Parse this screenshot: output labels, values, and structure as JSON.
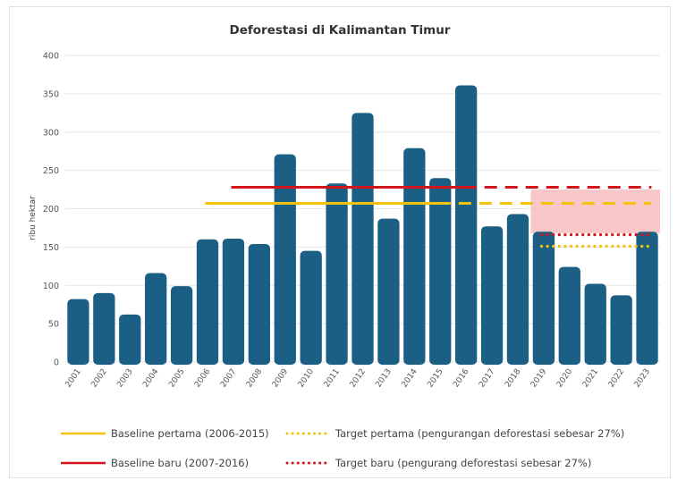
{
  "chart_data": {
    "type": "bar",
    "title": "Deforestasi di Kalimantan Timur",
    "ylabel": "ribu hektar",
    "xlabel": "",
    "ylim": [
      0,
      400
    ],
    "yticks": [
      0,
      50,
      100,
      150,
      200,
      250,
      300,
      350,
      400
    ],
    "grid": true,
    "legend_position": "bottom",
    "bar_color": "#1b5f85",
    "categories": [
      "2001",
      "2002",
      "2003",
      "2004",
      "2005",
      "2006",
      "2007",
      "2008",
      "2009",
      "2010",
      "2011",
      "2012",
      "2013",
      "2014",
      "2015",
      "2016",
      "2017",
      "2018",
      "2019",
      "2020",
      "2021",
      "2022",
      "2023"
    ],
    "values": [
      82,
      90,
      62,
      116,
      99,
      160,
      161,
      154,
      271,
      145,
      233,
      325,
      187,
      279,
      240,
      361,
      177,
      193,
      170,
      124,
      102,
      87,
      170
    ],
    "reference_lines": [
      {
        "name": "Baseline pertama (2006-2015)",
        "value": 207,
        "from": "2006",
        "to": "2015",
        "style": "solid",
        "color": "#f2c20e"
      },
      {
        "name": "Baseline pertama (2006-2015)",
        "value": 207,
        "from": "2015",
        "to": "2023",
        "style": "dashed",
        "color": "#f2c20e"
      },
      {
        "name": "Target pertama (pengurangan deforestasi sebesar 27%)",
        "value": 151,
        "from": "2019",
        "to": "2023",
        "style": "dotted",
        "color": "#f2c20e"
      },
      {
        "name": "Baseline baru (2007-2016)",
        "value": 228,
        "from": "2007",
        "to": "2016",
        "style": "solid",
        "color": "#d0161b"
      },
      {
        "name": "Baseline baru (2007-2016)",
        "value": 228,
        "from": "2016",
        "to": "2023",
        "style": "dashed",
        "color": "#d0161b"
      },
      {
        "name": "Target baru (pengurang deforestasi sebesar 27%)",
        "value": 166,
        "from": "2019",
        "to": "2023",
        "style": "dotted",
        "color": "#d0161b"
      }
    ],
    "highlight_band": {
      "from": "2018.5",
      "to": "2023.5",
      "y_range": [
        168,
        225
      ],
      "color": "#f7b9b9"
    },
    "legend": [
      {
        "label": "Baseline pertama (2006-2015)",
        "color": "#f2c20e",
        "style": "solid"
      },
      {
        "label": "Target pertama (pengurangan deforestasi sebesar 27%)",
        "color": "#f2c20e",
        "style": "dotted"
      },
      {
        "label": "Baseline baru (2007-2016)",
        "color": "#d0161b",
        "style": "solid"
      },
      {
        "label": "Target baru (pengurang deforestasi sebesar 27%)",
        "color": "#d0161b",
        "style": "dotted"
      }
    ]
  }
}
